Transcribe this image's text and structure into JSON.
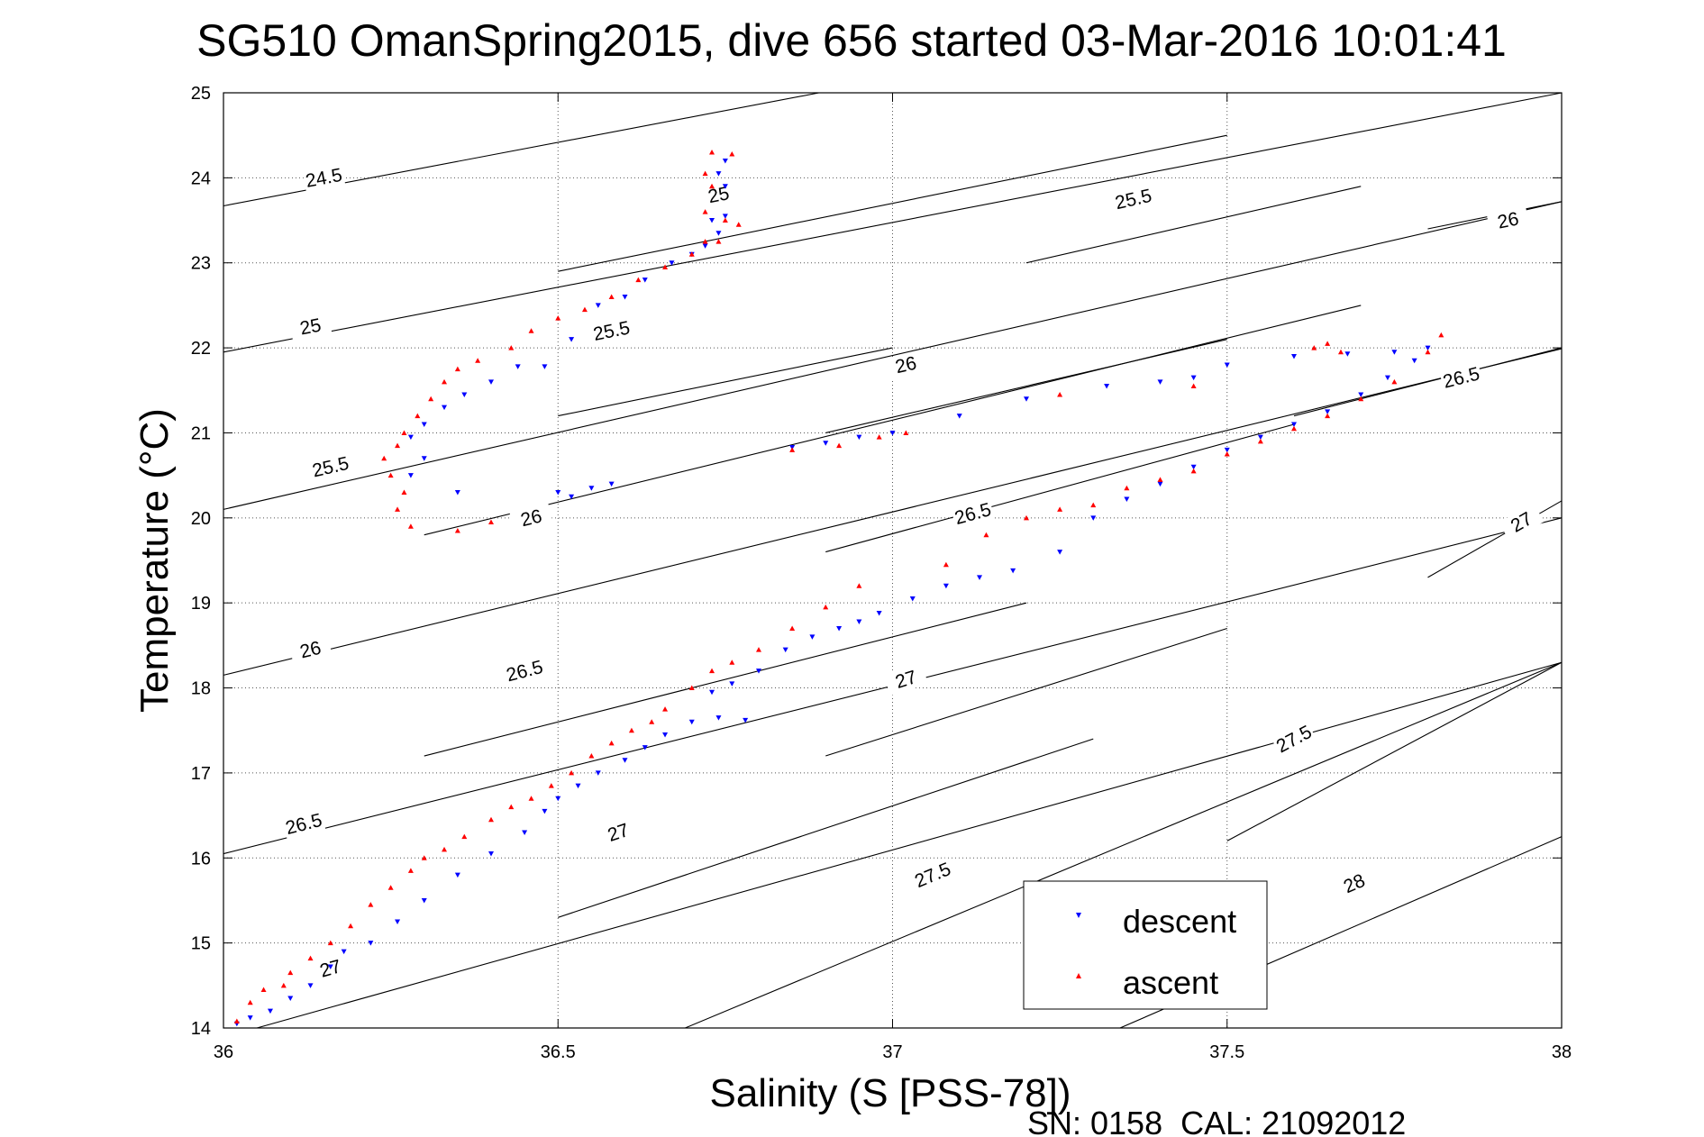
{
  "chart_data": {
    "type": "scatter",
    "title": "SG510 OmanSpring2015, dive 656 started 03-Mar-2016 10:01:41",
    "xlabel": "Salinity (S [PSS-78])",
    "ylabel": "Temperature (°C)",
    "xlim": [
      36,
      38
    ],
    "ylim": [
      14,
      25
    ],
    "xticks": [
      36,
      36.5,
      37,
      37.5,
      38
    ],
    "xtick_labels": [
      "36",
      "36.5",
      "37",
      "37.5",
      "38"
    ],
    "yticks": [
      14,
      15,
      16,
      17,
      18,
      19,
      20,
      21,
      22,
      23,
      24,
      25
    ],
    "ytick_labels": [
      "14",
      "15",
      "16",
      "17",
      "18",
      "19",
      "20",
      "21",
      "22",
      "23",
      "24",
      "25"
    ],
    "grid": true,
    "legend_position": "bottom-center",
    "footer": "SN: 0158  CAL: 21092012",
    "contours": [
      {
        "label": "24.5",
        "points": [
          [
            36,
            23.67
          ],
          [
            36.89,
            25
          ]
        ],
        "label_at": [
          36.15,
          24.0
        ]
      },
      {
        "label": "25",
        "points": [
          [
            36,
            21.95
          ],
          [
            38,
            25
          ]
        ],
        "label_at": [
          36.13,
          22.25
        ]
      },
      {
        "label": "25",
        "points": [
          [
            36.5,
            22.9
          ],
          [
            37.5,
            24.5
          ]
        ],
        "label_at": [
          36.74,
          23.8
        ]
      },
      {
        "label": "25.5",
        "points": [
          [
            36,
            20.1
          ],
          [
            38,
            23.72
          ]
        ],
        "label_at": [
          36.16,
          20.6
        ]
      },
      {
        "label": "25.5",
        "points": [
          [
            36.5,
            21.2
          ],
          [
            37.0,
            22.0
          ]
        ],
        "label_at": [
          36.58,
          22.2
        ]
      },
      {
        "label": "25.5",
        "points": [
          [
            37.2,
            23.0
          ],
          [
            37.7,
            23.9
          ]
        ],
        "label_at": [
          37.36,
          23.75
        ]
      },
      {
        "label": "26",
        "points": [
          [
            36,
            18.15
          ],
          [
            38,
            21.99
          ]
        ],
        "label_at": [
          36.13,
          18.45
        ]
      },
      {
        "label": "26",
        "points": [
          [
            36.3,
            19.8
          ],
          [
            37.7,
            22.5
          ]
        ],
        "label_at": [
          36.46,
          20.0
        ]
      },
      {
        "label": "26",
        "points": [
          [
            36.9,
            21.0
          ],
          [
            37.5,
            22.1
          ]
        ],
        "label_at": [
          37.02,
          21.8
        ]
      },
      {
        "label": "26",
        "points": [
          [
            37.8,
            23.4
          ],
          [
            38,
            23.72
          ]
        ],
        "label_at": [
          37.92,
          23.5
        ]
      },
      {
        "label": "26.5",
        "points": [
          [
            36,
            16.05
          ],
          [
            38,
            20.0
          ]
        ],
        "label_at": [
          36.12,
          16.4
        ]
      },
      {
        "label": "26.5",
        "points": [
          [
            36.3,
            17.2
          ],
          [
            37.2,
            19.0
          ]
        ],
        "label_at": [
          36.45,
          18.2
        ]
      },
      {
        "label": "26.5",
        "points": [
          [
            36.9,
            19.6
          ],
          [
            37.6,
            21.1
          ]
        ],
        "label_at": [
          37.12,
          20.05
        ]
      },
      {
        "label": "26.5",
        "points": [
          [
            37.6,
            21.2
          ],
          [
            38,
            22.0
          ]
        ],
        "label_at": [
          37.85,
          21.65
        ]
      },
      {
        "label": "27",
        "points": [
          [
            36.05,
            14.0
          ],
          [
            38,
            18.3
          ]
        ],
        "label_at": [
          36.16,
          14.7
        ]
      },
      {
        "label": "27",
        "points": [
          [
            36.5,
            15.3
          ],
          [
            37.3,
            17.4
          ]
        ],
        "label_at": [
          36.59,
          16.3
        ]
      },
      {
        "label": "27",
        "points": [
          [
            36.9,
            17.2
          ],
          [
            37.5,
            18.7
          ]
        ],
        "label_at": [
          37.02,
          18.1
        ]
      },
      {
        "label": "27",
        "points": [
          [
            37.8,
            19.3
          ],
          [
            38,
            20.2
          ]
        ],
        "label_at": [
          37.94,
          19.95
        ]
      },
      {
        "label": "27.5",
        "points": [
          [
            36.69,
            14.0
          ],
          [
            38,
            18.3
          ]
        ],
        "label_at": [
          37.06,
          15.8
        ]
      },
      {
        "label": "27.5",
        "points": [
          [
            37.5,
            16.2
          ],
          [
            38,
            18.3
          ]
        ],
        "label_at": [
          37.6,
          17.4
        ]
      },
      {
        "label": "28",
        "points": [
          [
            37.34,
            14.0
          ],
          [
            38,
            16.25
          ]
        ],
        "label_at": [
          37.69,
          15.7
        ]
      }
    ],
    "series": [
      {
        "name": "descent",
        "marker": "triangle-down",
        "color": "#0000ff",
        "points": [
          [
            36.02,
            14.05
          ],
          [
            36.04,
            14.12
          ],
          [
            36.07,
            14.2
          ],
          [
            36.1,
            14.35
          ],
          [
            36.13,
            14.5
          ],
          [
            36.16,
            14.72
          ],
          [
            36.18,
            14.9
          ],
          [
            36.22,
            15.0
          ],
          [
            36.26,
            15.25
          ],
          [
            36.3,
            15.5
          ],
          [
            36.35,
            15.8
          ],
          [
            36.4,
            16.05
          ],
          [
            36.45,
            16.3
          ],
          [
            36.48,
            16.55
          ],
          [
            36.5,
            16.7
          ],
          [
            36.53,
            16.85
          ],
          [
            36.56,
            17.0
          ],
          [
            36.6,
            17.15
          ],
          [
            36.63,
            17.3
          ],
          [
            36.66,
            17.45
          ],
          [
            36.7,
            17.6
          ],
          [
            36.74,
            17.65
          ],
          [
            36.78,
            17.62
          ],
          [
            36.73,
            17.95
          ],
          [
            36.76,
            18.05
          ],
          [
            36.8,
            18.2
          ],
          [
            36.84,
            18.45
          ],
          [
            36.88,
            18.6
          ],
          [
            36.92,
            18.7
          ],
          [
            36.95,
            18.78
          ],
          [
            36.98,
            18.88
          ],
          [
            37.03,
            19.05
          ],
          [
            37.08,
            19.2
          ],
          [
            37.13,
            19.3
          ],
          [
            37.18,
            19.38
          ],
          [
            37.25,
            19.6
          ],
          [
            37.3,
            20.0
          ],
          [
            37.35,
            20.22
          ],
          [
            37.4,
            20.4
          ],
          [
            37.45,
            20.6
          ],
          [
            37.5,
            20.8
          ],
          [
            37.55,
            20.95
          ],
          [
            37.6,
            21.1
          ],
          [
            37.65,
            21.25
          ],
          [
            37.7,
            21.45
          ],
          [
            37.74,
            21.65
          ],
          [
            37.78,
            21.85
          ],
          [
            37.8,
            22.0
          ],
          [
            37.75,
            21.95
          ],
          [
            37.68,
            21.93
          ],
          [
            37.6,
            21.9
          ],
          [
            37.5,
            21.8
          ],
          [
            37.45,
            21.65
          ],
          [
            37.4,
            21.6
          ],
          [
            37.32,
            21.55
          ],
          [
            37.2,
            21.4
          ],
          [
            37.1,
            21.2
          ],
          [
            37.0,
            21.0
          ],
          [
            36.95,
            20.95
          ],
          [
            36.9,
            20.88
          ],
          [
            36.85,
            20.83
          ],
          [
            36.58,
            20.4
          ],
          [
            36.55,
            20.35
          ],
          [
            36.52,
            20.25
          ],
          [
            36.5,
            20.3
          ],
          [
            36.35,
            20.3
          ],
          [
            36.28,
            20.5
          ],
          [
            36.3,
            20.7
          ],
          [
            36.28,
            20.95
          ],
          [
            36.3,
            21.1
          ],
          [
            36.33,
            21.3
          ],
          [
            36.36,
            21.45
          ],
          [
            36.4,
            21.6
          ],
          [
            36.44,
            21.78
          ],
          [
            36.48,
            21.78
          ],
          [
            36.52,
            22.1
          ],
          [
            36.56,
            22.5
          ],
          [
            36.6,
            22.6
          ],
          [
            36.63,
            22.8
          ],
          [
            36.67,
            23.0
          ],
          [
            36.7,
            23.1
          ],
          [
            36.72,
            23.2
          ],
          [
            36.74,
            23.35
          ],
          [
            36.75,
            23.55
          ],
          [
            36.73,
            23.5
          ],
          [
            36.75,
            23.9
          ],
          [
            36.74,
            24.05
          ],
          [
            36.75,
            24.2
          ]
        ]
      },
      {
        "name": "ascent",
        "marker": "triangle-up",
        "color": "#ff0000",
        "points": [
          [
            36.02,
            14.08
          ],
          [
            36.04,
            14.3
          ],
          [
            36.06,
            14.45
          ],
          [
            36.09,
            14.5
          ],
          [
            36.1,
            14.65
          ],
          [
            36.13,
            14.82
          ],
          [
            36.16,
            15.0
          ],
          [
            36.19,
            15.2
          ],
          [
            36.22,
            15.45
          ],
          [
            36.25,
            15.65
          ],
          [
            36.28,
            15.85
          ],
          [
            36.3,
            16.0
          ],
          [
            36.33,
            16.1
          ],
          [
            36.36,
            16.25
          ],
          [
            36.4,
            16.45
          ],
          [
            36.43,
            16.6
          ],
          [
            36.46,
            16.7
          ],
          [
            36.49,
            16.85
          ],
          [
            36.52,
            17.0
          ],
          [
            36.55,
            17.2
          ],
          [
            36.58,
            17.35
          ],
          [
            36.61,
            17.5
          ],
          [
            36.64,
            17.6
          ],
          [
            36.66,
            17.75
          ],
          [
            36.7,
            18.0
          ],
          [
            36.73,
            18.2
          ],
          [
            36.76,
            18.3
          ],
          [
            36.8,
            18.45
          ],
          [
            36.85,
            18.7
          ],
          [
            36.9,
            18.95
          ],
          [
            36.95,
            19.2
          ],
          [
            37.08,
            19.45
          ],
          [
            37.14,
            19.8
          ],
          [
            37.2,
            20.0
          ],
          [
            37.25,
            20.1
          ],
          [
            37.3,
            20.15
          ],
          [
            37.35,
            20.35
          ],
          [
            37.4,
            20.45
          ],
          [
            37.45,
            20.55
          ],
          [
            37.5,
            20.75
          ],
          [
            37.55,
            20.9
          ],
          [
            37.6,
            21.05
          ],
          [
            37.65,
            21.2
          ],
          [
            37.7,
            21.4
          ],
          [
            37.75,
            21.6
          ],
          [
            37.8,
            21.95
          ],
          [
            37.82,
            22.15
          ],
          [
            37.65,
            22.05
          ],
          [
            37.63,
            22.0
          ],
          [
            37.67,
            21.95
          ],
          [
            37.45,
            21.55
          ],
          [
            37.25,
            21.45
          ],
          [
            37.02,
            21.0
          ],
          [
            36.98,
            20.95
          ],
          [
            36.92,
            20.85
          ],
          [
            36.85,
            20.8
          ],
          [
            36.4,
            19.95
          ],
          [
            36.35,
            19.85
          ],
          [
            36.28,
            19.9
          ],
          [
            36.26,
            20.1
          ],
          [
            36.27,
            20.3
          ],
          [
            36.25,
            20.5
          ],
          [
            36.24,
            20.7
          ],
          [
            36.26,
            20.85
          ],
          [
            36.27,
            21.0
          ],
          [
            36.29,
            21.2
          ],
          [
            36.31,
            21.4
          ],
          [
            36.33,
            21.6
          ],
          [
            36.35,
            21.75
          ],
          [
            36.38,
            21.85
          ],
          [
            36.43,
            22.0
          ],
          [
            36.46,
            22.2
          ],
          [
            36.5,
            22.35
          ],
          [
            36.54,
            22.45
          ],
          [
            36.58,
            22.6
          ],
          [
            36.62,
            22.8
          ],
          [
            36.66,
            22.95
          ],
          [
            36.7,
            23.1
          ],
          [
            36.74,
            23.25
          ],
          [
            36.77,
            23.45
          ],
          [
            36.72,
            23.25
          ],
          [
            36.75,
            23.5
          ],
          [
            36.72,
            23.6
          ],
          [
            36.73,
            23.9
          ],
          [
            36.72,
            24.05
          ],
          [
            36.73,
            24.3
          ],
          [
            36.76,
            24.28
          ]
        ]
      }
    ]
  }
}
